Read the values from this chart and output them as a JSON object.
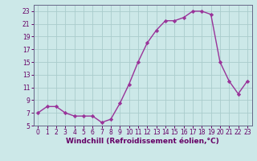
{
  "x": [
    0,
    1,
    2,
    3,
    4,
    5,
    6,
    7,
    8,
    9,
    10,
    11,
    12,
    13,
    14,
    15,
    16,
    17,
    18,
    19,
    20,
    21,
    22,
    23
  ],
  "y": [
    7,
    8,
    8,
    7,
    6.5,
    6.5,
    6.5,
    5.5,
    6,
    8.5,
    11.5,
    15,
    18,
    20,
    21.5,
    21.5,
    22,
    23,
    23,
    22.5,
    15,
    12,
    10,
    12
  ],
  "line_color": "#993399",
  "marker": "D",
  "marker_size": 2.2,
  "bg_color": "#cce8e8",
  "grid_color": "#aacccc",
  "xlabel": "Windchill (Refroidissement éolien,°C)",
  "xlabel_fontsize": 6.5,
  "ylim": [
    5,
    24
  ],
  "xlim": [
    -0.5,
    23.5
  ],
  "yticks": [
    5,
    7,
    9,
    11,
    13,
    15,
    17,
    19,
    21,
    23
  ],
  "xticks": [
    0,
    1,
    2,
    3,
    4,
    5,
    6,
    7,
    8,
    9,
    10,
    11,
    12,
    13,
    14,
    15,
    16,
    17,
    18,
    19,
    20,
    21,
    22,
    23
  ],
  "tick_fontsize": 5.5,
  "line_width": 1.0,
  "spine_color": "#666688",
  "label_color": "#660066"
}
